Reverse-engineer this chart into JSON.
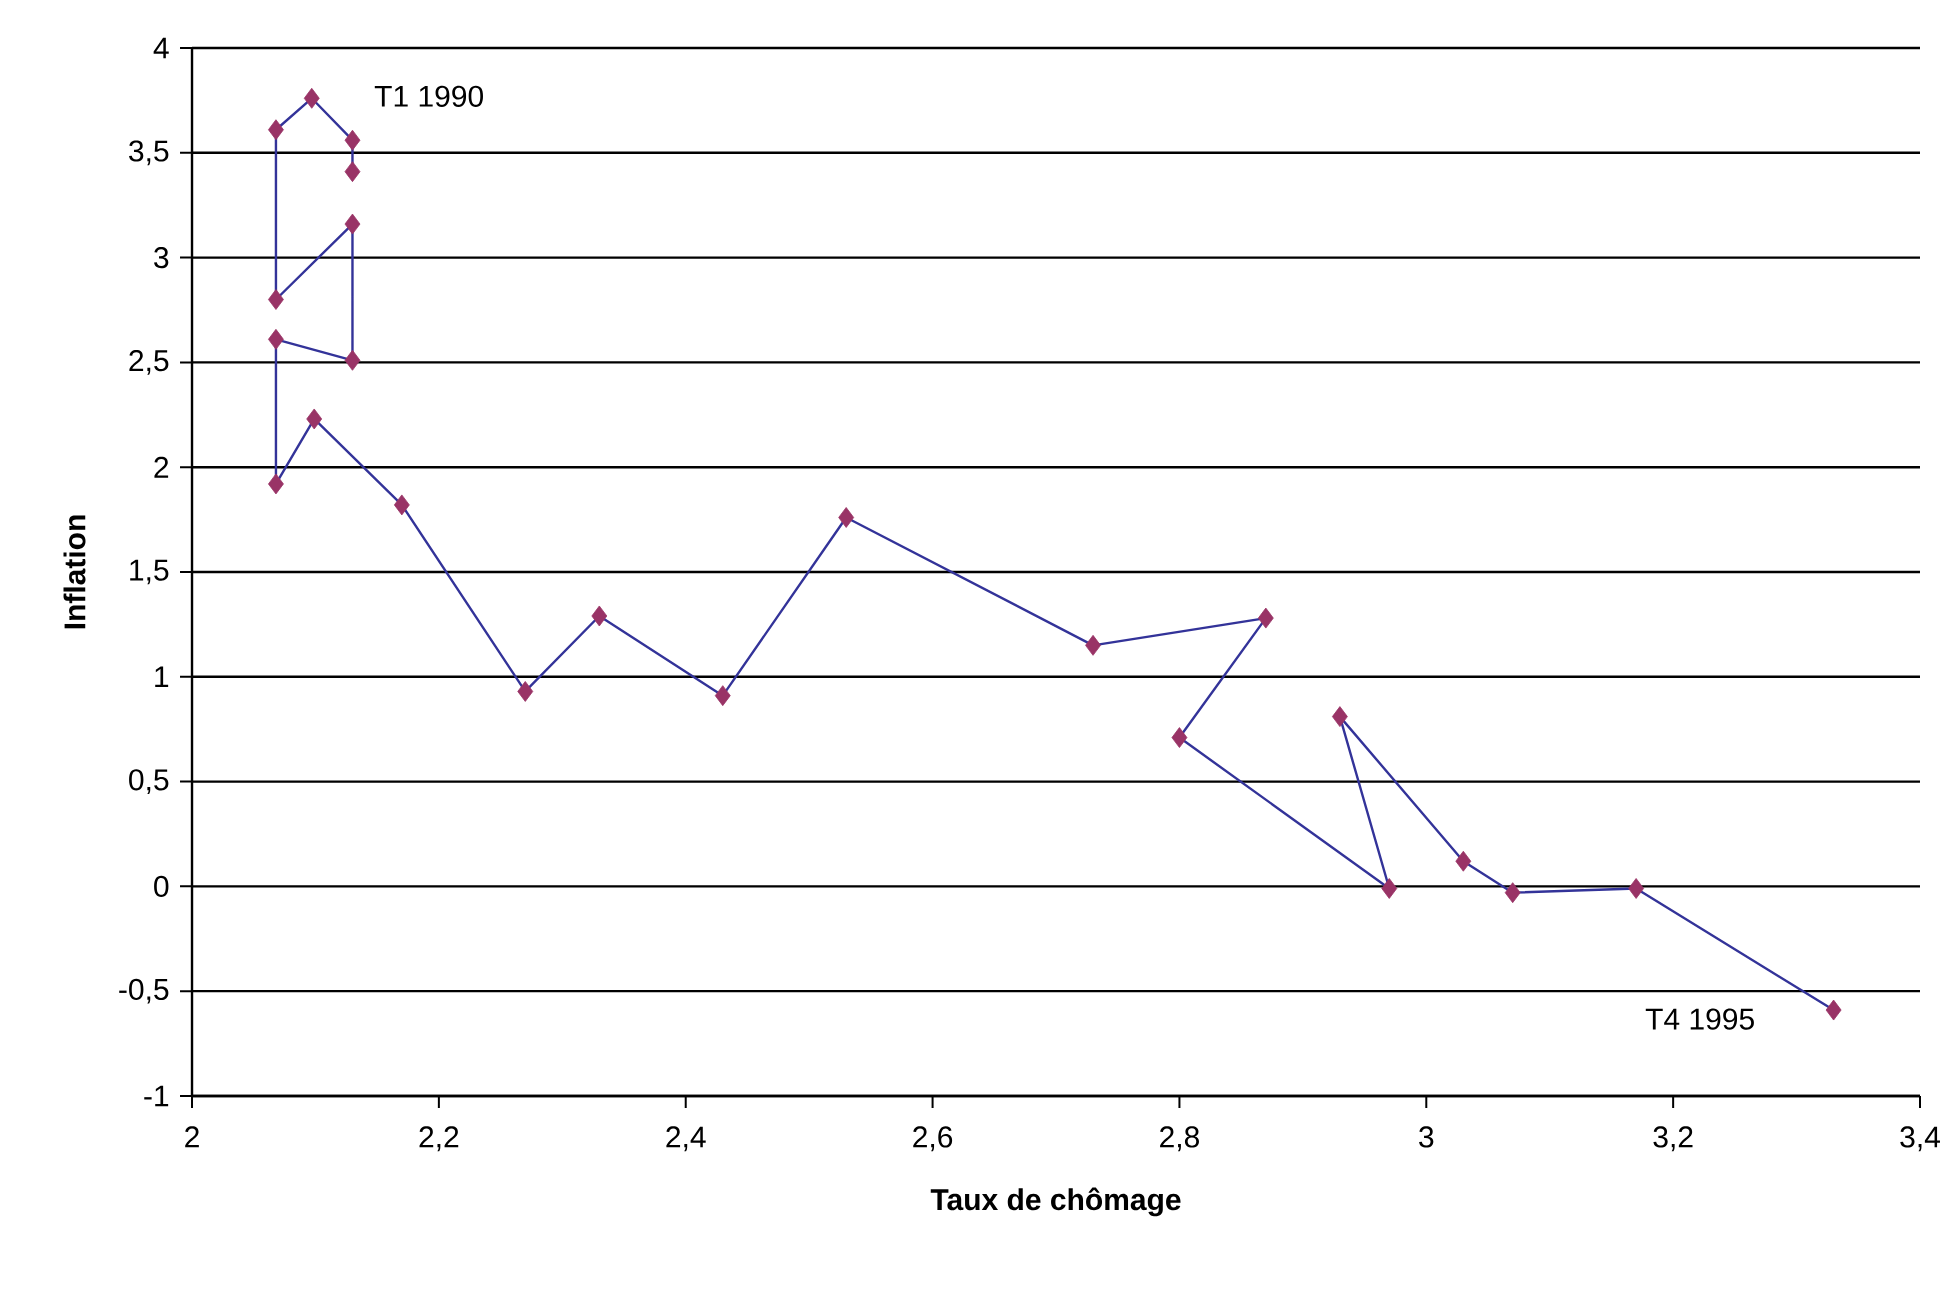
{
  "chart_data": {
    "type": "line",
    "xlabel": "Taux de chômage",
    "ylabel": "Inflation",
    "x": [
      2.13,
      2.13,
      2.097,
      2.068,
      2.068,
      2.13,
      2.13,
      2.068,
      2.068,
      2.099,
      2.17,
      2.27,
      2.33,
      2.43,
      2.53,
      2.73,
      2.87,
      2.8,
      2.97,
      2.93,
      3.03,
      3.07,
      3.17,
      3.33
    ],
    "series": [
      {
        "color": "#333399",
        "colors": [
          "#993366",
          "#993366",
          "#993366",
          "#993366",
          "#993366",
          "#993366",
          "#993366",
          "#993366",
          "#993366",
          "#993366",
          "#993366",
          "#993366",
          "#993366",
          "#993366",
          "#993366",
          "#993366",
          "#993366",
          "#993366",
          "#993366",
          "#993366",
          "#993366",
          "#993366",
          "#993366",
          "#993366"
        ],
        "values": [
          3.41,
          3.56,
          3.76,
          3.61,
          2.8,
          3.16,
          2.51,
          2.61,
          1.92,
          2.23,
          1.82,
          0.93,
          1.29,
          0.91,
          1.76,
          1.15,
          1.28,
          0.71,
          -0.01,
          0.81,
          0.12,
          -0.03,
          -0.01,
          -0.59
        ]
      }
    ],
    "annotations": [
      {
        "text": "T1 1990",
        "x": 2.097,
        "y": 3.76
      },
      {
        "text": "T4 1995",
        "x": 3.33,
        "y": -0.59
      }
    ],
    "xlim": [
      2,
      3.4
    ],
    "xticks": [
      2,
      {
        "value": 2.2,
        "label": "2,2"
      },
      {
        "value": 2.4,
        "label": "2,4"
      },
      {
        "value": 2.6,
        "label": "2,6"
      },
      {
        "value": 2.8,
        "label": "2,8"
      },
      3,
      {
        "value": 3.2,
        "label": "3,2"
      },
      {
        "value": 3.4,
        "label": "3,4"
      }
    ],
    "ylim": [
      -1,
      4
    ],
    "yticks": [
      -1,
      {
        "value": -0.5,
        "label": "-0,5"
      },
      0,
      {
        "value": 0.5,
        "label": "0,5"
      },
      1,
      {
        "value": 1.5,
        "label": "1,5"
      },
      2,
      {
        "value": 2.5,
        "label": "2,5"
      },
      3,
      {
        "value": 3.5,
        "label": "3,5"
      },
      4
    ],
    "grid": "y",
    "marker": "diamond",
    "line_style": "solid"
  }
}
